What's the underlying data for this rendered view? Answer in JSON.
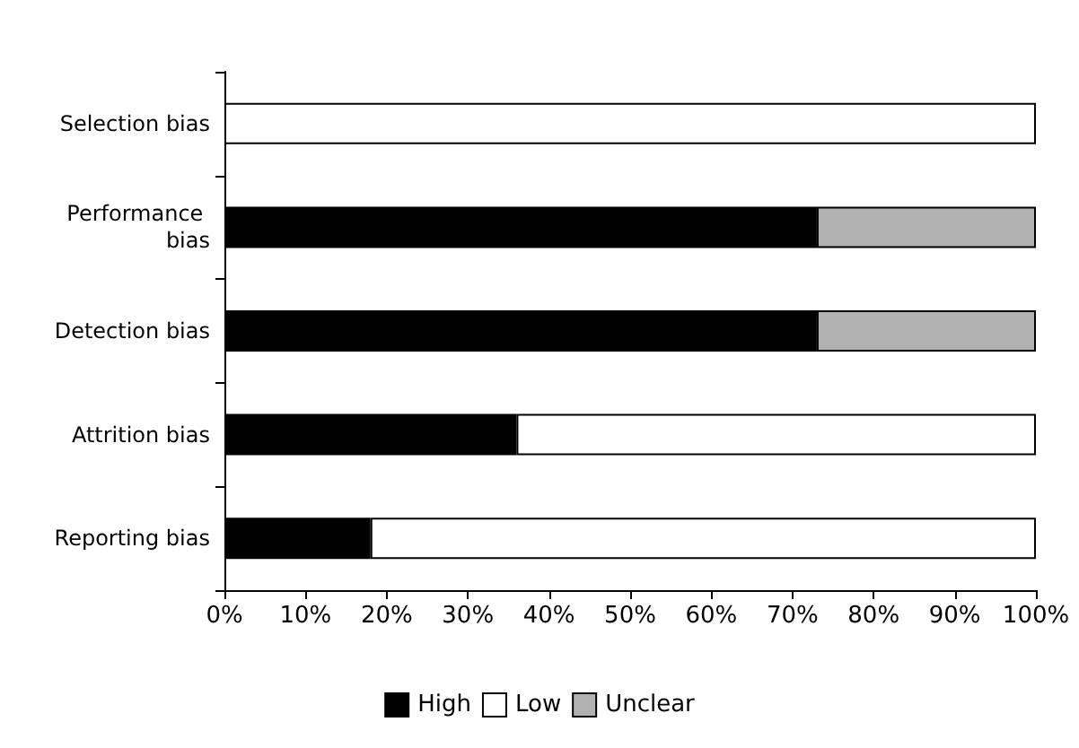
{
  "chart_data": {
    "type": "bar",
    "orientation": "horizontal",
    "stacked": true,
    "categories": [
      "Selection bias",
      "Performance bias",
      "Detection bias",
      "Attrition bias",
      "Reporting bias"
    ],
    "series": [
      {
        "name": "High",
        "color": "#000000",
        "values": [
          0,
          73,
          73,
          36,
          18
        ]
      },
      {
        "name": "Low",
        "color": "#ffffff",
        "values": [
          100,
          0,
          0,
          64,
          82
        ]
      },
      {
        "name": "Unclear",
        "color": "#b2b2b2",
        "values": [
          0,
          27,
          27,
          0,
          0
        ]
      }
    ],
    "xlim": [
      0,
      100
    ],
    "xticks": [
      {
        "value": 0,
        "label": "0%"
      },
      {
        "value": 10,
        "label": "10%"
      },
      {
        "value": 20,
        "label": "20%"
      },
      {
        "value": 30,
        "label": "30%"
      },
      {
        "value": 40,
        "label": "40%"
      },
      {
        "value": 50,
        "label": "50%"
      },
      {
        "value": 60,
        "label": "60%"
      },
      {
        "value": 70,
        "label": "70%"
      },
      {
        "value": 80,
        "label": "80%"
      },
      {
        "value": 90,
        "label": "90%"
      },
      {
        "value": 100,
        "label": "100%"
      }
    ],
    "grid": false,
    "legend": "bottom"
  }
}
